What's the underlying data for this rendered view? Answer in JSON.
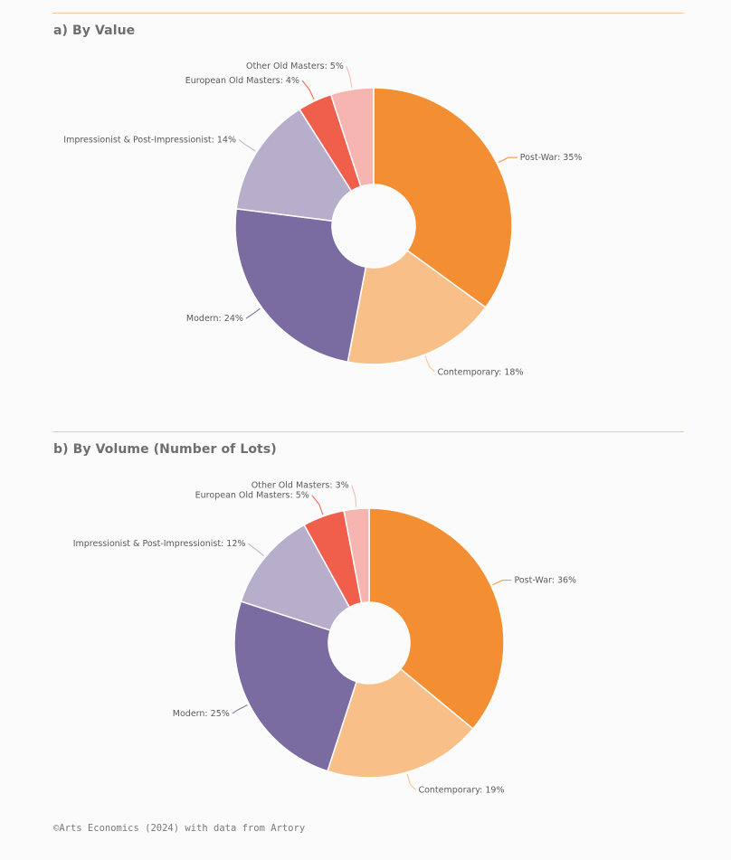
{
  "panels": [
    {
      "title": "a) By Value"
    },
    {
      "title": "b) By Volume (Number of Lots)"
    }
  ],
  "footer": {
    "source": "©Arts Economics (2024) with data from Artory"
  },
  "chart_data": [
    {
      "type": "pie",
      "title": "a) By Value",
      "donut": true,
      "categories": [
        "Post-War",
        "Contemporary",
        "Modern",
        "Impressionist & Post-Impressionist",
        "European Old Masters",
        "Other Old Masters"
      ],
      "values": [
        35,
        18,
        24,
        14,
        4,
        5
      ],
      "unit": "%",
      "labels": [
        "Post-War: 35%",
        "Contemporary: 18%",
        "Modern: 24%",
        "Impressionist & Post-Impressionist: 14%",
        "European Old Masters: 4%",
        "Other Old Masters: 5%"
      ],
      "colors": [
        "#f38f32",
        "#f9bf89",
        "#7a6ba0",
        "#b6aecb",
        "#ef5f4b",
        "#f7b5b1"
      ]
    },
    {
      "type": "pie",
      "title": "b) By Volume (Number of Lots)",
      "donut": true,
      "categories": [
        "Post-War",
        "Contemporary",
        "Modern",
        "Impressionist & Post-Impressionist",
        "European Old Masters",
        "Other Old Masters"
      ],
      "values": [
        36,
        19,
        25,
        12,
        5,
        3
      ],
      "unit": "%",
      "labels": [
        "Post-War: 36%",
        "Contemporary: 19%",
        "Modern: 25%",
        "Impressionist & Post-Impressionist: 12%",
        "European Old Masters: 5%",
        "Other Old Masters: 3%"
      ],
      "colors": [
        "#f38f32",
        "#f9bf89",
        "#7a6ba0",
        "#b6aecb",
        "#ef5f4b",
        "#f7b5b1"
      ]
    }
  ]
}
